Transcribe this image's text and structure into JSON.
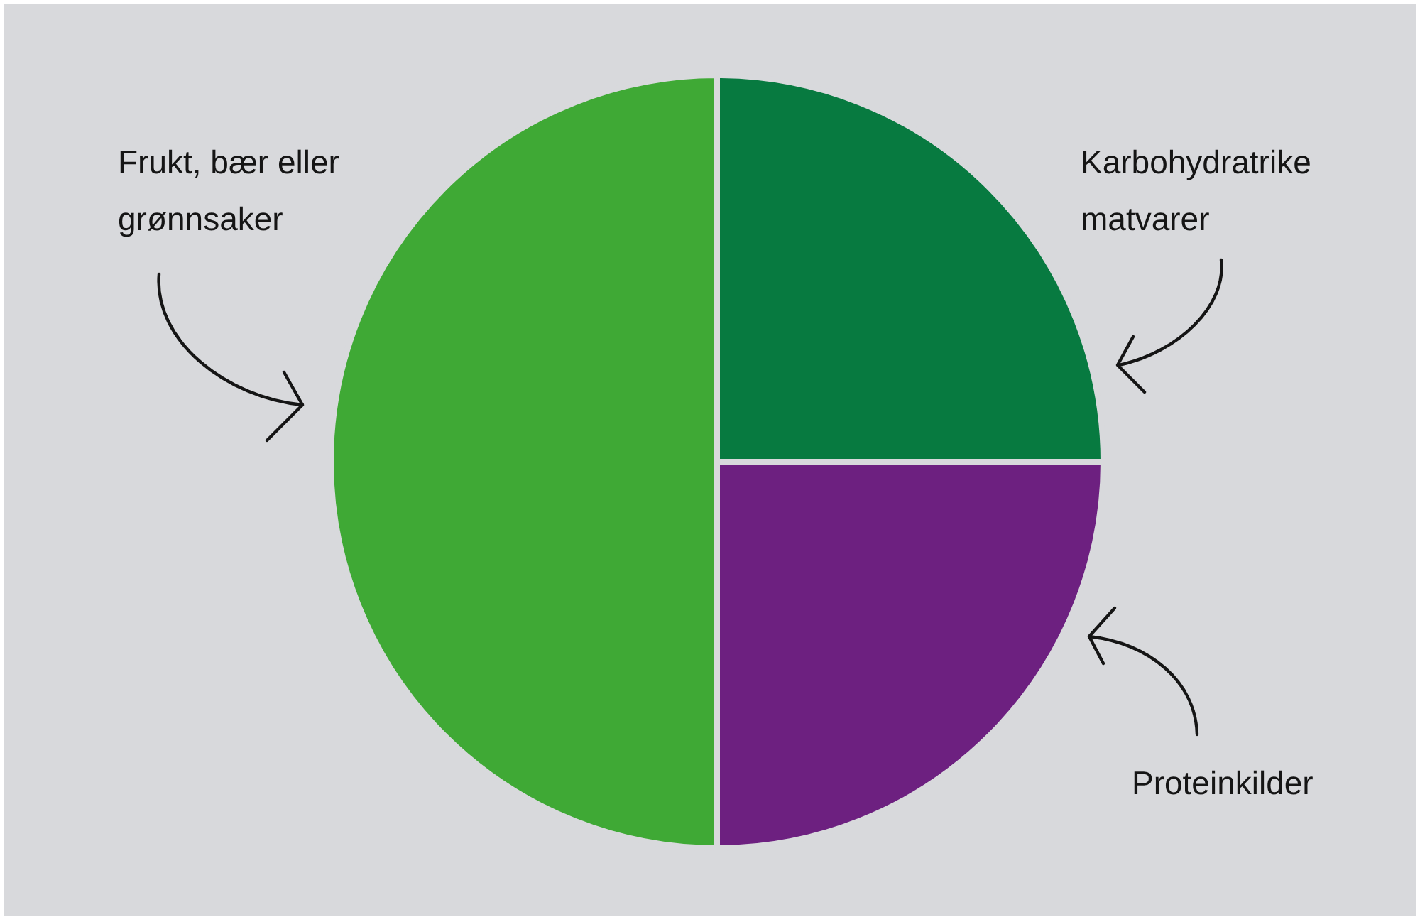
{
  "chart_data": {
    "type": "pie",
    "categories": [
      "Karbohydratrike matvarer",
      "Proteinkilder",
      "Frukt, bær eller grønnsaker"
    ],
    "values": [
      25,
      25,
      50
    ],
    "colors": [
      "#077a40",
      "#6d2080",
      "#3fa935"
    ]
  }
}
